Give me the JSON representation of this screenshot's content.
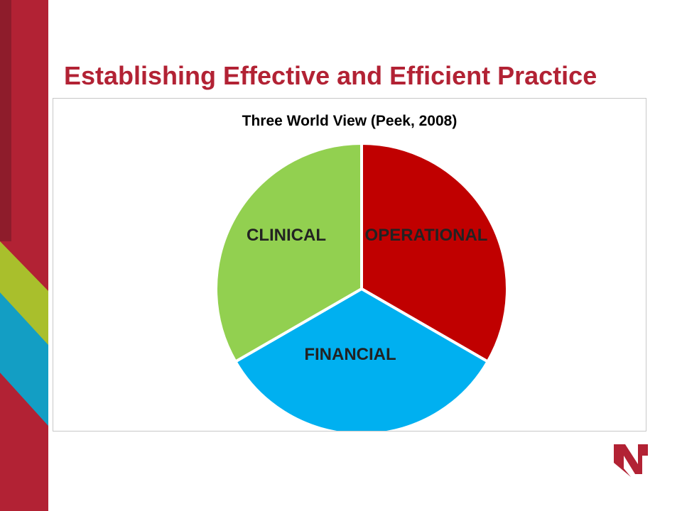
{
  "slide": {
    "title": "Establishing Effective and Efficient Practice"
  },
  "colors": {
    "brand_red": "#b22234",
    "title_red": "#b22234",
    "band_red_dark": "#8e1c2b",
    "band_green": "#a9bf2c",
    "band_teal": "#139ec4"
  },
  "logo": {
    "icon": "nebraska-n-logo-icon",
    "color": "#b22234"
  },
  "chart_data": {
    "type": "pie",
    "title": "Three World View (Peek, 2008)",
    "slices": [
      {
        "label": "OPERATIONAL",
        "value": 33.33,
        "color": "#c00000"
      },
      {
        "label": "FINANCIAL",
        "value": 33.33,
        "color": "#00b0f0"
      },
      {
        "label": "CLINICAL",
        "value": 33.33,
        "color": "#92d050"
      }
    ],
    "start_angle_deg": 0,
    "direction": "clockwise",
    "legend": "none"
  }
}
